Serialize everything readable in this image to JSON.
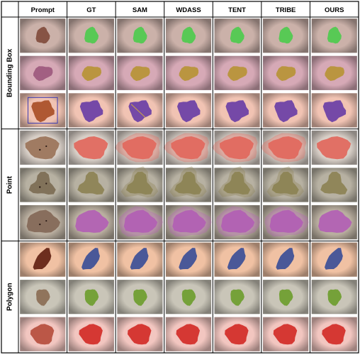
{
  "figure": {
    "columns": [
      "Prompt",
      "GT",
      "SAM",
      "WDASS",
      "TENT",
      "TRIBE",
      "OURS"
    ],
    "groups": [
      {
        "label": "Bounding Box",
        "rows": [
          {
            "skin": "#cbb1a9",
            "lesion": "#7f4a3a",
            "mask": "#4ecb4e",
            "shape": "small"
          },
          {
            "skin": "#d6a9b6",
            "lesion": "#9c567c",
            "mask": "#b79436",
            "shape": "oval"
          },
          {
            "skin": "#f1c3b3",
            "lesion": "#a74c23",
            "mask": "#6a3fa6",
            "shape": "blob"
          }
        ]
      },
      {
        "label": "Point",
        "rows": [
          {
            "skin": "#d7cec6",
            "lesion": "#9a7256",
            "mask": "#e2685c",
            "shape": "wide"
          },
          {
            "skin": "#b7b1a2",
            "lesion": "#7b6c52",
            "mask": "#8c8254",
            "shape": "tri"
          },
          {
            "skin": "#b9ae9f",
            "lesion": "#836755",
            "mask": "#b25fb4",
            "shape": "wide"
          }
        ]
      },
      {
        "label": "Polygon",
        "rows": [
          {
            "skin": "#f0c1a3",
            "lesion": "#5e1e10",
            "mask": "#3c4f97",
            "shape": "diag"
          },
          {
            "skin": "#c9c5b8",
            "lesion": "#8a6a52",
            "mask": "#6e9d2e",
            "shape": "small"
          },
          {
            "skin": "#f2c6c0",
            "lesion": "#b54a3a",
            "mask": "#d22b27",
            "shape": "round"
          }
        ]
      }
    ]
  }
}
